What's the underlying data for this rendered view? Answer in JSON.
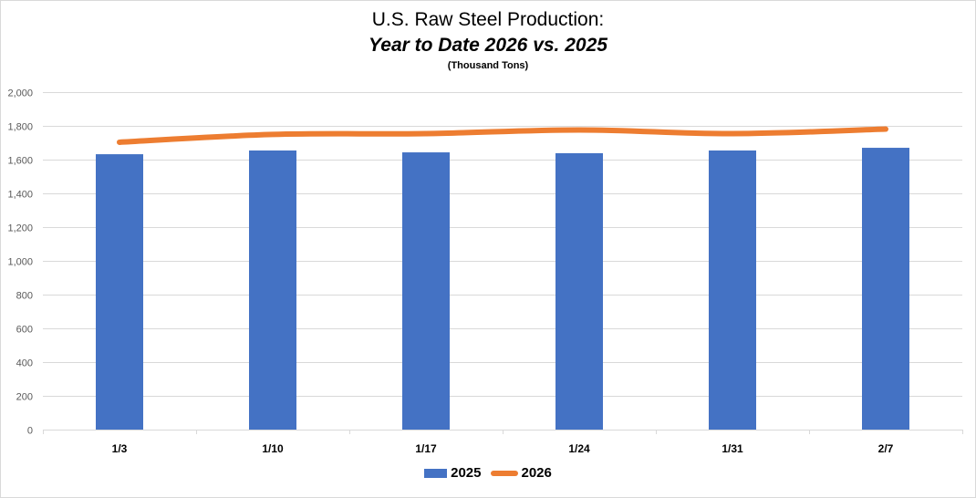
{
  "chart_data": {
    "type": "bar",
    "title": "U.S. Raw Steel Production:",
    "subtitle": "Year to Date 2026 vs. 2025",
    "unit_label": "(Thousand Tons)",
    "xlabel": "",
    "ylabel": "",
    "categories": [
      "1/3",
      "1/10",
      "1/17",
      "1/24",
      "1/31",
      "2/7"
    ],
    "series": [
      {
        "name": "2025",
        "type": "bar",
        "color": "#4472c4",
        "values": [
          1632,
          1654,
          1643,
          1638,
          1654,
          1670
        ]
      },
      {
        "name": "2026",
        "type": "line",
        "color": "#ed7d31",
        "values": [
          1703,
          1749,
          1754,
          1776,
          1754,
          1781
        ]
      }
    ],
    "ylim": [
      0,
      2000
    ],
    "yticks": [
      0,
      200,
      400,
      600,
      800,
      1000,
      1200,
      1400,
      1600,
      1800,
      2000
    ],
    "ytick_labels": [
      "0",
      "200",
      "400",
      "600",
      "800",
      "1,000",
      "1,200",
      "1,400",
      "1,600",
      "1,800",
      "2,000"
    ],
    "grid": true,
    "legend_position": "bottom"
  },
  "colors": {
    "grid": "#d9d9d9",
    "axis": "#d9d9d9",
    "bar_2025": "#4472c4",
    "line_2026": "#ed7d31"
  }
}
